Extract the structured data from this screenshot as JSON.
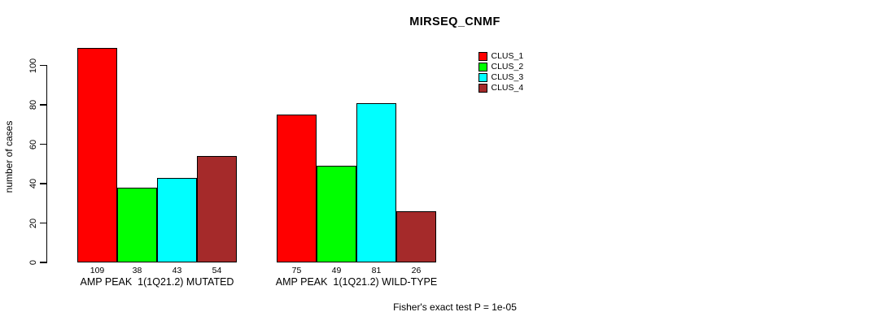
{
  "chart_data": {
    "type": "bar",
    "title": "MIRSEQ_CNMF",
    "ylabel": "number of cases",
    "xlabel": "",
    "yticks": [
      0,
      20,
      40,
      60,
      80,
      100
    ],
    "ylim": [
      0,
      109
    ],
    "grid": false,
    "legend_position": "top-right",
    "categories": [
      "AMP PEAK  1(1Q21.2) MUTATED",
      "AMP PEAK  1(1Q21.2) WILD-TYPE"
    ],
    "series": [
      {
        "name": "CLUS_1",
        "color": "#ff0000",
        "values": [
          109,
          75
        ]
      },
      {
        "name": "CLUS_2",
        "color": "#00ff00",
        "values": [
          38,
          49
        ]
      },
      {
        "name": "CLUS_3",
        "color": "#00ffff",
        "values": [
          43,
          81
        ]
      },
      {
        "name": "CLUS_4",
        "color": "#a52a2a",
        "values": [
          54,
          26
        ]
      }
    ],
    "bar_value_labels": [
      [
        109,
        38,
        43,
        54
      ],
      [
        75,
        49,
        81,
        26
      ]
    ],
    "annotation": "Fisher's exact test P = 1e-05"
  },
  "colors": {
    "background": "#ffffff",
    "axis": "#000000",
    "bar_border": "#000000",
    "text": "#000000"
  }
}
